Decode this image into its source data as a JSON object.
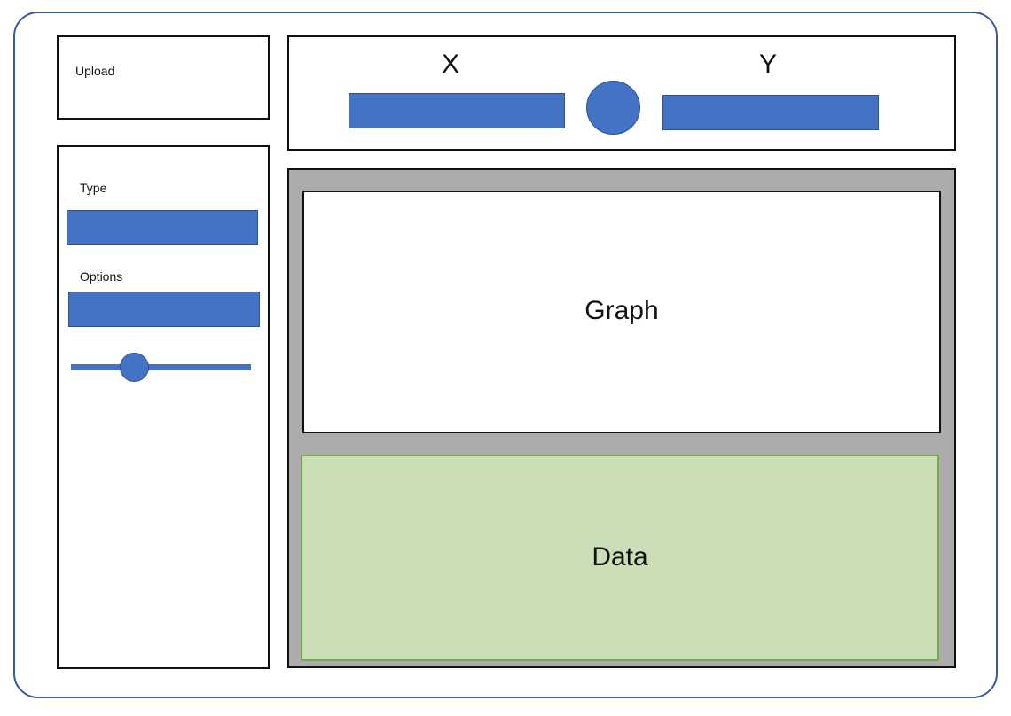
{
  "upload": {
    "label": "Upload"
  },
  "sidebar": {
    "type_label": "Type",
    "options_label": "Options",
    "slider_value": 0.35
  },
  "axes": {
    "x_label": "X",
    "y_label": "Y"
  },
  "main": {
    "graph_label": "Graph",
    "data_label": "Data"
  },
  "colors": {
    "accent": "#4472c4",
    "accent_border": "#2f528f",
    "panel_bg": "#adabab",
    "data_bg": "#cadfb8",
    "data_border": "#70ad47",
    "frame_border": "#3b5a9a"
  }
}
